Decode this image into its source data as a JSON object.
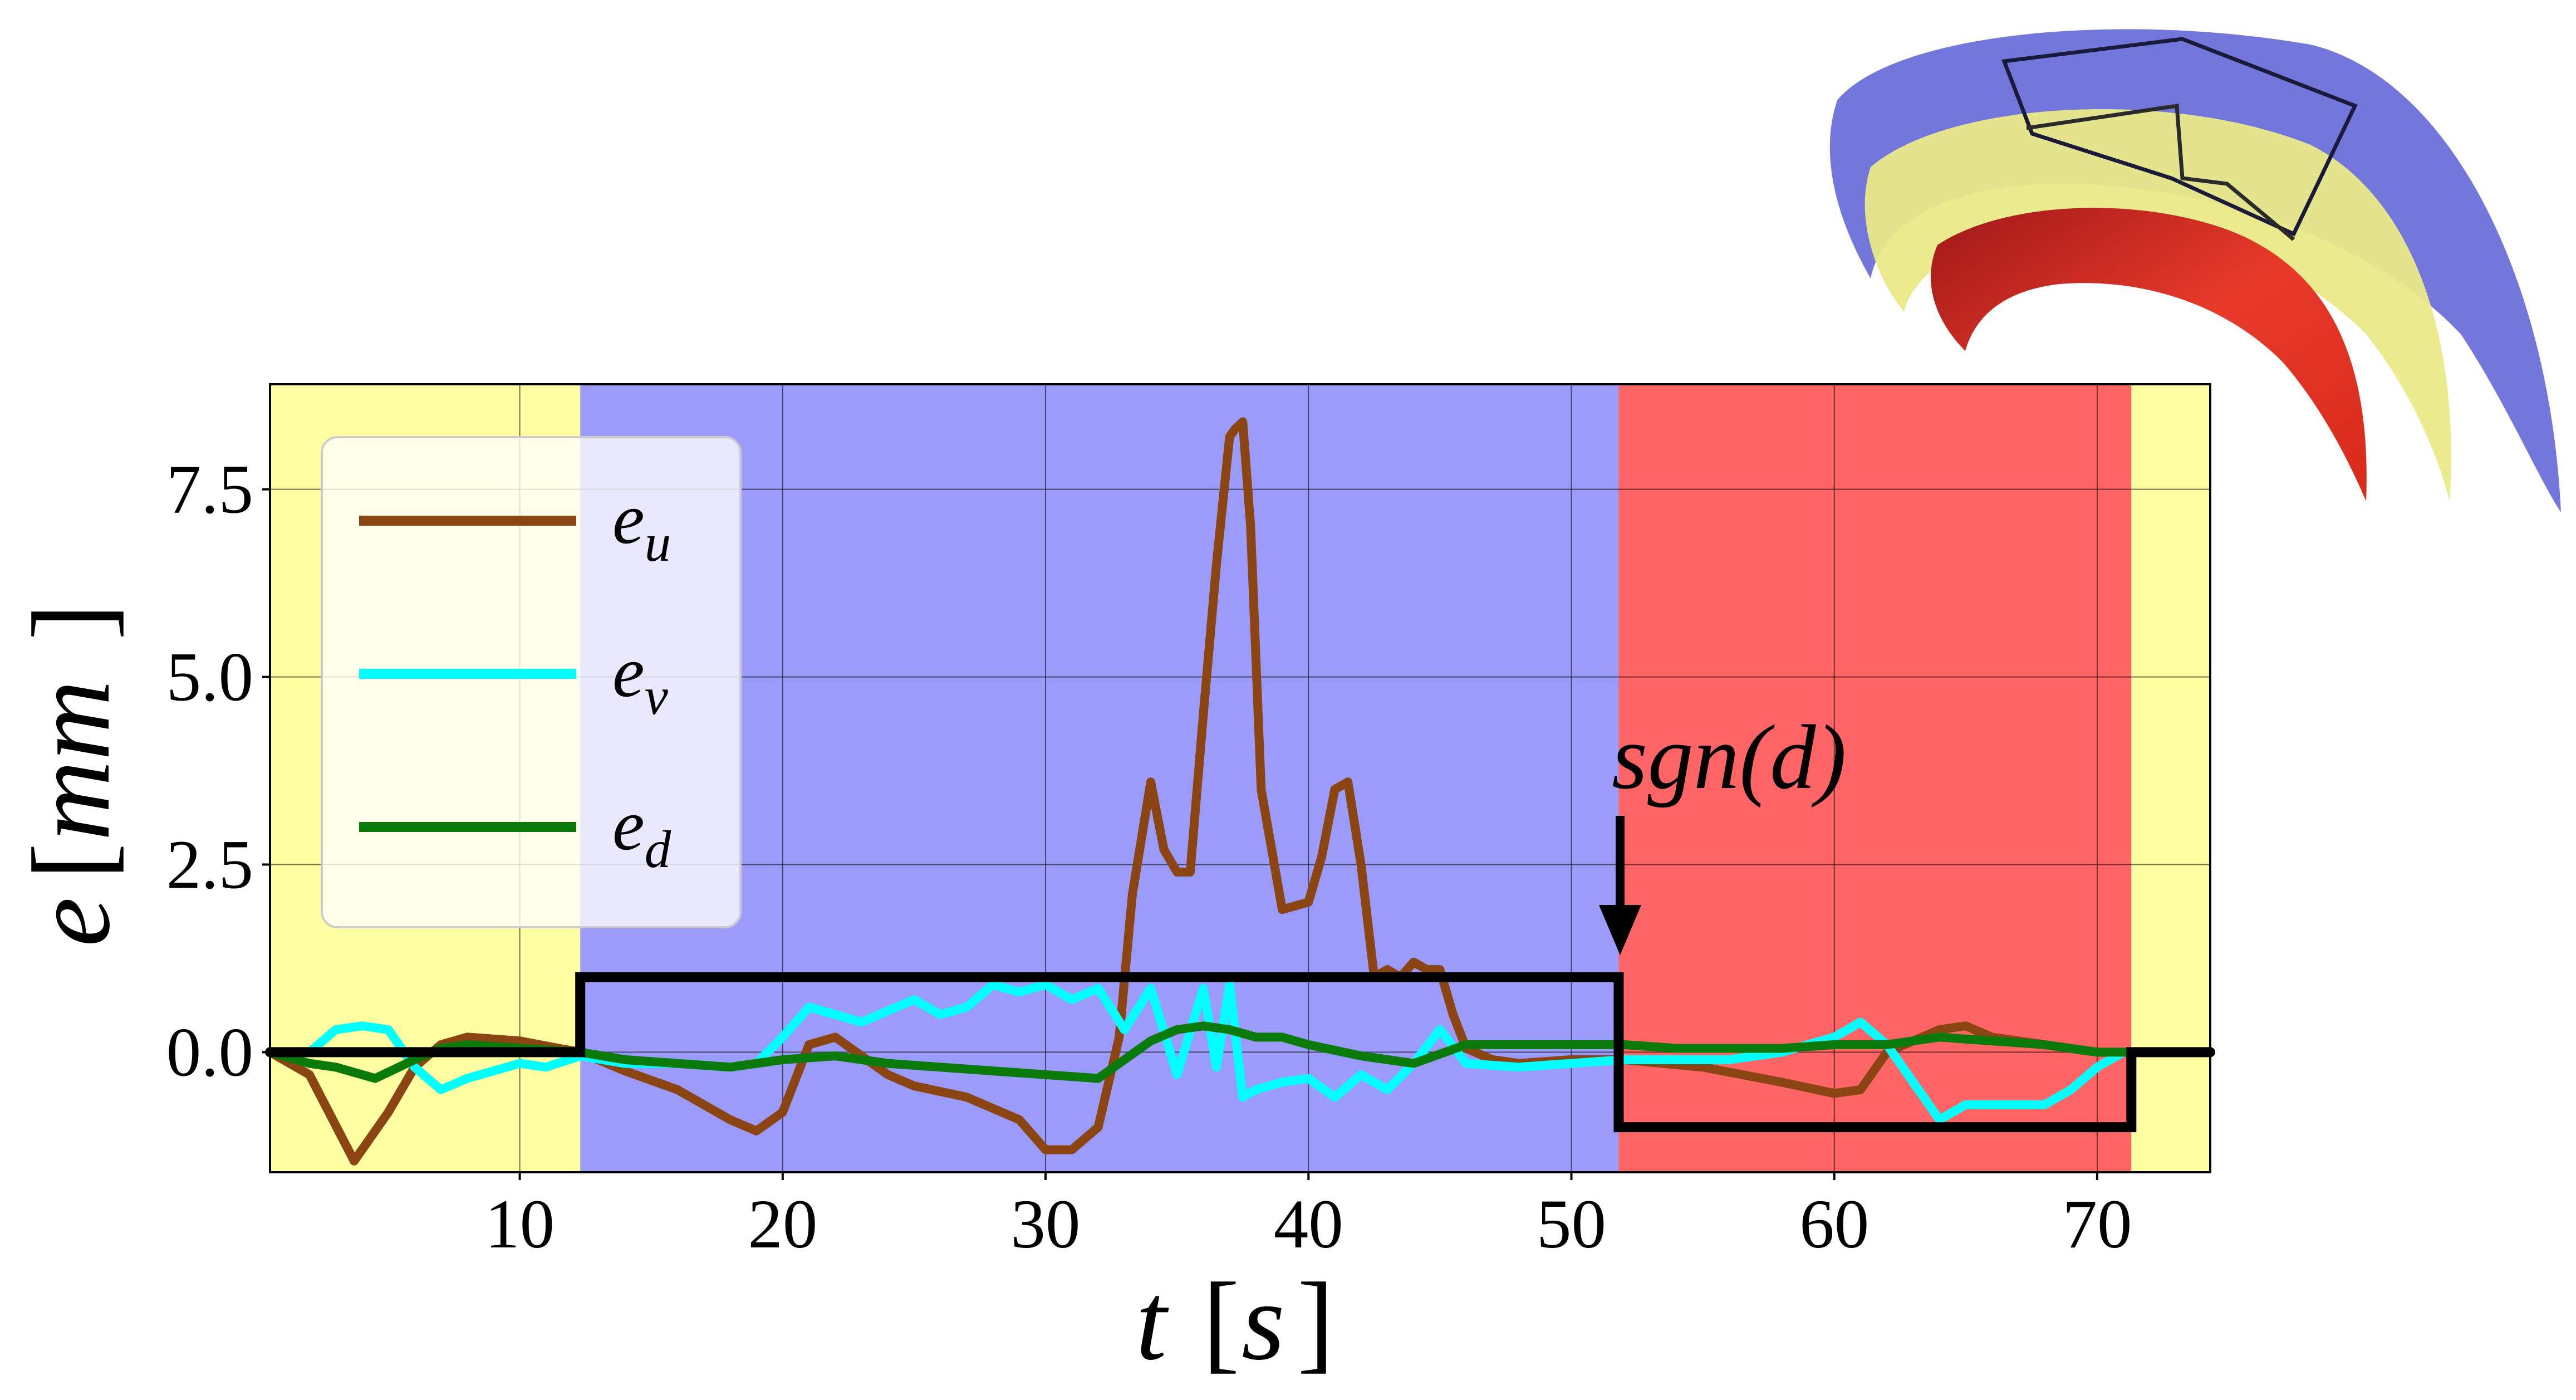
{
  "chart_data": {
    "type": "line",
    "title": "",
    "xlabel_var": "t",
    "xlabel_unit": "s",
    "ylabel_var": "e",
    "ylabel_unit": "mm",
    "xlim": [
      0.5,
      74.3
    ],
    "ylim": [
      -1.6,
      8.9
    ],
    "xticks": [
      10,
      20,
      30,
      40,
      50,
      60,
      70
    ],
    "yticks": [
      0.0,
      2.5,
      5.0,
      7.5
    ],
    "ytick_labels": [
      "0.0",
      "2.5",
      "5.0",
      "7.5"
    ],
    "grid": true,
    "regions": [
      {
        "name": "region-1",
        "start": 0.5,
        "end": 12.3,
        "color": "#fffea0"
      },
      {
        "name": "region-2",
        "start": 12.3,
        "end": 51.8,
        "color": "#9b9bfb"
      },
      {
        "name": "region-3",
        "start": 51.8,
        "end": 71.3,
        "color": "#ff6565"
      },
      {
        "name": "region-4",
        "start": 71.3,
        "end": 74.3,
        "color": "#fffea0"
      }
    ],
    "series": [
      {
        "name": "e_u",
        "var": "e",
        "sub": "u",
        "color": "#8b4513",
        "x": [
          0.5,
          2,
          3.7,
          5,
          6,
          7,
          8,
          10,
          11.5,
          12.3,
          14,
          16,
          18,
          19,
          20,
          21,
          22,
          24,
          25,
          27,
          29,
          30,
          31,
          32,
          32.8,
          33.3,
          34,
          34.5,
          35,
          35.5,
          36,
          36.5,
          37,
          37.2,
          37.5,
          37.8,
          38.2,
          39,
          40,
          40.5,
          41,
          41.5,
          42,
          42.5,
          43,
          43.5,
          44,
          44.5,
          45,
          45.5,
          46,
          47,
          48,
          50,
          52,
          55,
          58,
          60,
          61,
          62,
          63,
          64,
          65,
          66,
          68,
          70,
          71.3,
          72,
          74.3
        ],
        "y": [
          0,
          -0.3,
          -1.45,
          -0.8,
          -0.2,
          0.1,
          0.2,
          0.15,
          0.05,
          0,
          -0.25,
          -0.5,
          -0.9,
          -1.05,
          -0.8,
          0.1,
          0.2,
          -0.3,
          -0.45,
          -0.6,
          -0.9,
          -1.3,
          -1.3,
          -1.0,
          0.2,
          2.1,
          3.6,
          2.7,
          2.4,
          2.4,
          4.5,
          6.5,
          8.2,
          8.3,
          8.4,
          7.0,
          3.5,
          1.9,
          2.0,
          2.6,
          3.5,
          3.6,
          2.5,
          1.0,
          1.1,
          1.0,
          1.2,
          1.1,
          1.1,
          0.5,
          0.05,
          -0.1,
          -0.15,
          -0.1,
          -0.1,
          -0.2,
          -0.4,
          -0.55,
          -0.5,
          0.0,
          0.15,
          0.3,
          0.35,
          0.2,
          0.1,
          0.0,
          0.0,
          0.0,
          0.0
        ]
      },
      {
        "name": "e_v",
        "var": "e",
        "sub": "v",
        "color": "#00ffff",
        "x": [
          0.5,
          2,
          3,
          4,
          5,
          6,
          7,
          8,
          9,
          10,
          11,
          12.3,
          14,
          16,
          18,
          19,
          20,
          21,
          22,
          23,
          24,
          25,
          26,
          27,
          28,
          29,
          30,
          31,
          32,
          33,
          34,
          35,
          36,
          36.5,
          37,
          37.5,
          38,
          39,
          40,
          41,
          42,
          43,
          44,
          45,
          46,
          48,
          50,
          52,
          54,
          56,
          58,
          60,
          61,
          62,
          63,
          64,
          65,
          66,
          67,
          68,
          69,
          70,
          71,
          71.3,
          72,
          74.3
        ],
        "y": [
          0,
          0,
          0.3,
          0.35,
          0.3,
          -0.2,
          -0.5,
          -0.35,
          -0.25,
          -0.15,
          -0.2,
          -0.05,
          -0.15,
          -0.15,
          -0.2,
          -0.15,
          0.2,
          0.6,
          0.5,
          0.4,
          0.55,
          0.7,
          0.5,
          0.6,
          0.9,
          0.8,
          0.9,
          0.7,
          0.85,
          0.3,
          0.85,
          -0.3,
          0.85,
          -0.2,
          0.9,
          -0.6,
          -0.5,
          -0.4,
          -0.35,
          -0.6,
          -0.3,
          -0.5,
          -0.15,
          0.3,
          -0.15,
          -0.2,
          -0.15,
          -0.1,
          -0.1,
          -0.1,
          0.0,
          0.2,
          0.4,
          0.1,
          -0.4,
          -0.9,
          -0.7,
          -0.7,
          -0.7,
          -0.7,
          -0.5,
          -0.2,
          0.0,
          0.0,
          0.0,
          0.0
        ]
      },
      {
        "name": "e_d",
        "var": "e",
        "sub": "d",
        "color": "#0a7a0a",
        "x": [
          0.5,
          2,
          3,
          4.5,
          6,
          7,
          8,
          10,
          12.3,
          14,
          16,
          18,
          20,
          22,
          24,
          26,
          28,
          30,
          32,
          33,
          34,
          35,
          36,
          37,
          38,
          39,
          40,
          42,
          44,
          46,
          48,
          50,
          52,
          54,
          56,
          58,
          60,
          62,
          64,
          66,
          68,
          70,
          71.3,
          72,
          74.3
        ],
        "y": [
          0,
          -0.15,
          -0.2,
          -0.35,
          -0.1,
          0.05,
          0.1,
          0.05,
          0.0,
          -0.1,
          -0.15,
          -0.2,
          -0.1,
          -0.05,
          -0.15,
          -0.2,
          -0.25,
          -0.3,
          -0.35,
          -0.1,
          0.15,
          0.3,
          0.35,
          0.3,
          0.2,
          0.2,
          0.1,
          -0.05,
          -0.15,
          0.1,
          0.1,
          0.1,
          0.1,
          0.05,
          0.05,
          0.05,
          0.1,
          0.1,
          0.2,
          0.15,
          0.1,
          0.0,
          0.0,
          0.0,
          0.0
        ]
      },
      {
        "name": "sgn(d)",
        "color": "#000000",
        "x": [
          0.5,
          12.3,
          12.3,
          51.8,
          51.8,
          71.3,
          71.3,
          74.3
        ],
        "y": [
          0,
          0,
          1,
          1,
          -1,
          -1,
          0,
          0
        ]
      }
    ],
    "legend": {
      "position": "upper-left",
      "entries": [
        "e_u",
        "e_v",
        "e_d"
      ]
    },
    "annotations": [
      {
        "text": "sgn(d)",
        "arrow_to": [
          51.8,
          1.0
        ]
      }
    ]
  },
  "inset": {
    "description_icon": "layered-shell-surfaces-icon"
  }
}
